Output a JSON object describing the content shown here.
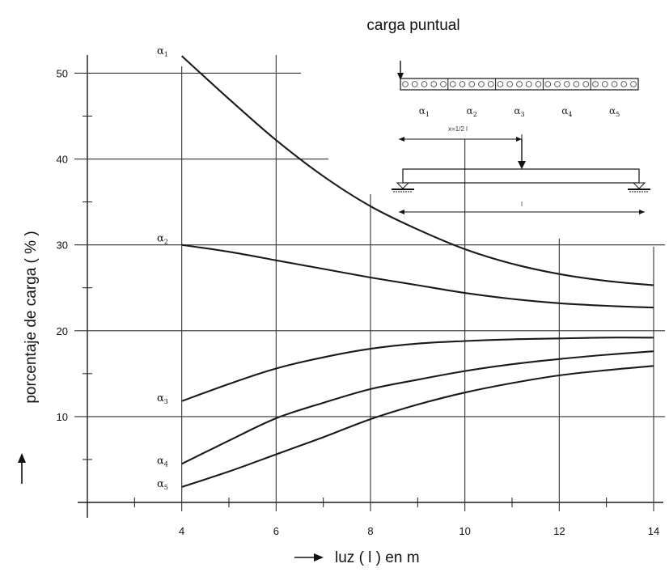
{
  "chart_data": {
    "type": "line",
    "title": "carga puntual",
    "xlabel": "luz ( l ) en m",
    "ylabel": "porcentaje de carga ( % )",
    "xlim": [
      2,
      14
    ],
    "ylim": [
      0,
      54
    ],
    "x_ticks": [
      "4",
      "6",
      "8",
      "10",
      "12",
      "14"
    ],
    "y_ticks": [
      "10",
      "20",
      "30",
      "40",
      "50"
    ],
    "grid": true,
    "series": [
      {
        "name": "α1",
        "base": "α",
        "sub": "1",
        "x": [
          4,
          5,
          6,
          7,
          8,
          9,
          10,
          11,
          12,
          13,
          14
        ],
        "y": [
          52,
          47,
          42.2,
          38,
          34.5,
          31.8,
          29.5,
          27.8,
          26.6,
          25.8,
          25.3
        ]
      },
      {
        "name": "α2",
        "base": "α",
        "sub": "2",
        "x": [
          4,
          5,
          6,
          7,
          8,
          9,
          10,
          11,
          12,
          13,
          14
        ],
        "y": [
          30,
          29.2,
          28.2,
          27.2,
          26.2,
          25.3,
          24.4,
          23.7,
          23.2,
          22.9,
          22.7
        ]
      },
      {
        "name": "α3",
        "base": "α",
        "sub": "3",
        "x": [
          4,
          5,
          6,
          7,
          8,
          9,
          10,
          11,
          12,
          13,
          14
        ],
        "y": [
          11.8,
          13.8,
          15.6,
          16.9,
          17.9,
          18.5,
          18.8,
          19,
          19.1,
          19.2,
          19.2
        ]
      },
      {
        "name": "α4",
        "base": "α",
        "sub": "4",
        "x": [
          4,
          5,
          6,
          7,
          8,
          9,
          10,
          11,
          12,
          13,
          14
        ],
        "y": [
          4.5,
          7.2,
          9.8,
          11.6,
          13.2,
          14.3,
          15.3,
          16.1,
          16.7,
          17.2,
          17.6
        ]
      },
      {
        "name": "α5",
        "base": "α",
        "sub": "5",
        "x": [
          4,
          5,
          6,
          7,
          8,
          9,
          10,
          11,
          12,
          13,
          14
        ],
        "y": [
          1.8,
          3.6,
          5.6,
          7.6,
          9.7,
          11.4,
          12.8,
          13.9,
          14.8,
          15.4,
          15.9
        ]
      }
    ]
  },
  "inset": {
    "segments": [
      {
        "base": "α",
        "sub": "1"
      },
      {
        "base": "α",
        "sub": "2"
      },
      {
        "base": "α",
        "sub": "3"
      },
      {
        "base": "α",
        "sub": "4"
      },
      {
        "base": "α",
        "sub": "5"
      }
    ],
    "dim_top": "x=1/2 l",
    "dim_bottom": "l"
  },
  "colors": {
    "line": "#1a1a1a",
    "grid": "#333333",
    "background": "#ffffff"
  }
}
